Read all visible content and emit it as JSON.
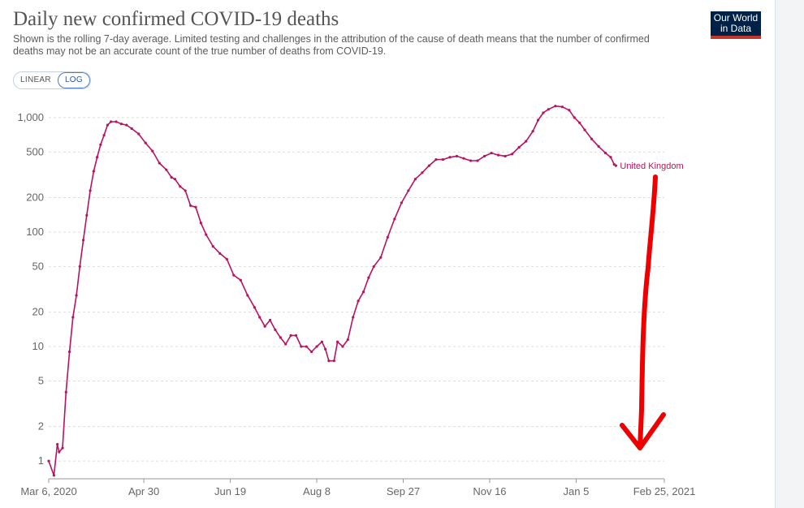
{
  "header": {
    "title": "Daily new confirmed COVID-19 deaths",
    "subtitle": "Shown is the rolling 7-day average. Limited testing and challenges in the attribution of the cause of death means that the number of confirmed deaths may not be an accurate count of the true number of deaths from COVID-19.",
    "logo_line1": "Our World",
    "logo_line2": "in Data"
  },
  "scale_toggle": {
    "options": [
      "LINEAR",
      "LOG"
    ],
    "selected": "LOG"
  },
  "colors": {
    "series": "#b9125f",
    "annotation_arrow": "#ee0000",
    "gridline": "#dddddd"
  },
  "chart_data": {
    "type": "line",
    "y_scale": "log",
    "ylim": [
      0.7,
      1550
    ],
    "y_ticks": [
      1,
      2,
      5,
      10,
      20,
      50,
      100,
      200,
      500,
      1000
    ],
    "y_tick_labels": [
      "1",
      "2",
      "5",
      "10",
      "20",
      "50",
      "100",
      "200",
      "500",
      "1,000"
    ],
    "x_range": [
      "2020-03-06",
      "2021-02-25"
    ],
    "x_tick_labels": [
      "Mar 6, 2020",
      "Apr 30",
      "Jun 19",
      "Aug 8",
      "Sep 27",
      "Nov 16",
      "Jan 5",
      "Feb 25, 2021"
    ],
    "x_tick_dates": [
      "2020-03-06",
      "2020-04-30",
      "2020-06-19",
      "2020-08-08",
      "2020-09-27",
      "2020-11-16",
      "2021-01-05",
      "2021-02-25"
    ],
    "grid": true,
    "legend": "inline-end",
    "series": [
      {
        "name": "United Kingdom",
        "points": [
          [
            "2020-03-06",
            1
          ],
          [
            "2020-03-09",
            0.75
          ],
          [
            "2020-03-11",
            1.4
          ],
          [
            "2020-03-12",
            1.2
          ],
          [
            "2020-03-14",
            1.3
          ],
          [
            "2020-03-16",
            4
          ],
          [
            "2020-03-18",
            9
          ],
          [
            "2020-03-20",
            18
          ],
          [
            "2020-03-22",
            28
          ],
          [
            "2020-03-24",
            50
          ],
          [
            "2020-03-26",
            85
          ],
          [
            "2020-03-28",
            140
          ],
          [
            "2020-03-30",
            230
          ],
          [
            "2020-04-01",
            340
          ],
          [
            "2020-04-03",
            450
          ],
          [
            "2020-04-05",
            580
          ],
          [
            "2020-04-07",
            700
          ],
          [
            "2020-04-09",
            860
          ],
          [
            "2020-04-11",
            920
          ],
          [
            "2020-04-14",
            920
          ],
          [
            "2020-04-17",
            880
          ],
          [
            "2020-04-20",
            860
          ],
          [
            "2020-04-23",
            800
          ],
          [
            "2020-04-27",
            720
          ],
          [
            "2020-05-01",
            600
          ],
          [
            "2020-05-05",
            510
          ],
          [
            "2020-05-09",
            400
          ],
          [
            "2020-05-13",
            350
          ],
          [
            "2020-05-16",
            300
          ],
          [
            "2020-05-18",
            290
          ],
          [
            "2020-05-21",
            250
          ],
          [
            "2020-05-24",
            230
          ],
          [
            "2020-05-27",
            170
          ],
          [
            "2020-05-30",
            165
          ],
          [
            "2020-06-02",
            120
          ],
          [
            "2020-06-05",
            95
          ],
          [
            "2020-06-09",
            75
          ],
          [
            "2020-06-13",
            65
          ],
          [
            "2020-06-17",
            58
          ],
          [
            "2020-06-21",
            42
          ],
          [
            "2020-06-25",
            38
          ],
          [
            "2020-06-29",
            28
          ],
          [
            "2020-07-03",
            22
          ],
          [
            "2020-07-06",
            18
          ],
          [
            "2020-07-09",
            15
          ],
          [
            "2020-07-12",
            17
          ],
          [
            "2020-07-15",
            14
          ],
          [
            "2020-07-18",
            12
          ],
          [
            "2020-07-21",
            10.5
          ],
          [
            "2020-07-24",
            12.5
          ],
          [
            "2020-07-27",
            12.5
          ],
          [
            "2020-07-30",
            10
          ],
          [
            "2020-08-02",
            10
          ],
          [
            "2020-08-05",
            9
          ],
          [
            "2020-08-08",
            10
          ],
          [
            "2020-08-11",
            11
          ],
          [
            "2020-08-13",
            9.5
          ],
          [
            "2020-08-15",
            7.5
          ],
          [
            "2020-08-18",
            7.5
          ],
          [
            "2020-08-20",
            11
          ],
          [
            "2020-08-23",
            10
          ],
          [
            "2020-08-26",
            11.5
          ],
          [
            "2020-08-29",
            18
          ],
          [
            "2020-09-01",
            25
          ],
          [
            "2020-09-04",
            30
          ],
          [
            "2020-09-07",
            40
          ],
          [
            "2020-09-10",
            50
          ],
          [
            "2020-09-14",
            60
          ],
          [
            "2020-09-18",
            90
          ],
          [
            "2020-09-22",
            130
          ],
          [
            "2020-09-26",
            180
          ],
          [
            "2020-09-30",
            230
          ],
          [
            "2020-10-04",
            290
          ],
          [
            "2020-10-08",
            330
          ],
          [
            "2020-10-12",
            380
          ],
          [
            "2020-10-16",
            430
          ],
          [
            "2020-10-20",
            430
          ],
          [
            "2020-10-24",
            450
          ],
          [
            "2020-10-28",
            460
          ],
          [
            "2020-11-01",
            440
          ],
          [
            "2020-11-05",
            420
          ],
          [
            "2020-11-09",
            420
          ],
          [
            "2020-11-13",
            460
          ],
          [
            "2020-11-17",
            490
          ],
          [
            "2020-11-21",
            470
          ],
          [
            "2020-11-25",
            460
          ],
          [
            "2020-11-29",
            480
          ],
          [
            "2020-12-03",
            550
          ],
          [
            "2020-12-07",
            620
          ],
          [
            "2020-12-11",
            760
          ],
          [
            "2020-12-14",
            950
          ],
          [
            "2020-12-17",
            1100
          ],
          [
            "2020-12-20",
            1180
          ],
          [
            "2020-12-24",
            1260
          ],
          [
            "2020-12-28",
            1240
          ],
          [
            "2021-01-01",
            1160
          ],
          [
            "2021-01-04",
            1000
          ],
          [
            "2021-01-07",
            900
          ],
          [
            "2021-01-10",
            780
          ],
          [
            "2021-01-14",
            650
          ],
          [
            "2021-01-18",
            560
          ],
          [
            "2021-01-22",
            490
          ],
          [
            "2021-01-25",
            450
          ],
          [
            "2021-01-27",
            390
          ],
          [
            "2021-01-28",
            380
          ]
        ]
      }
    ]
  }
}
